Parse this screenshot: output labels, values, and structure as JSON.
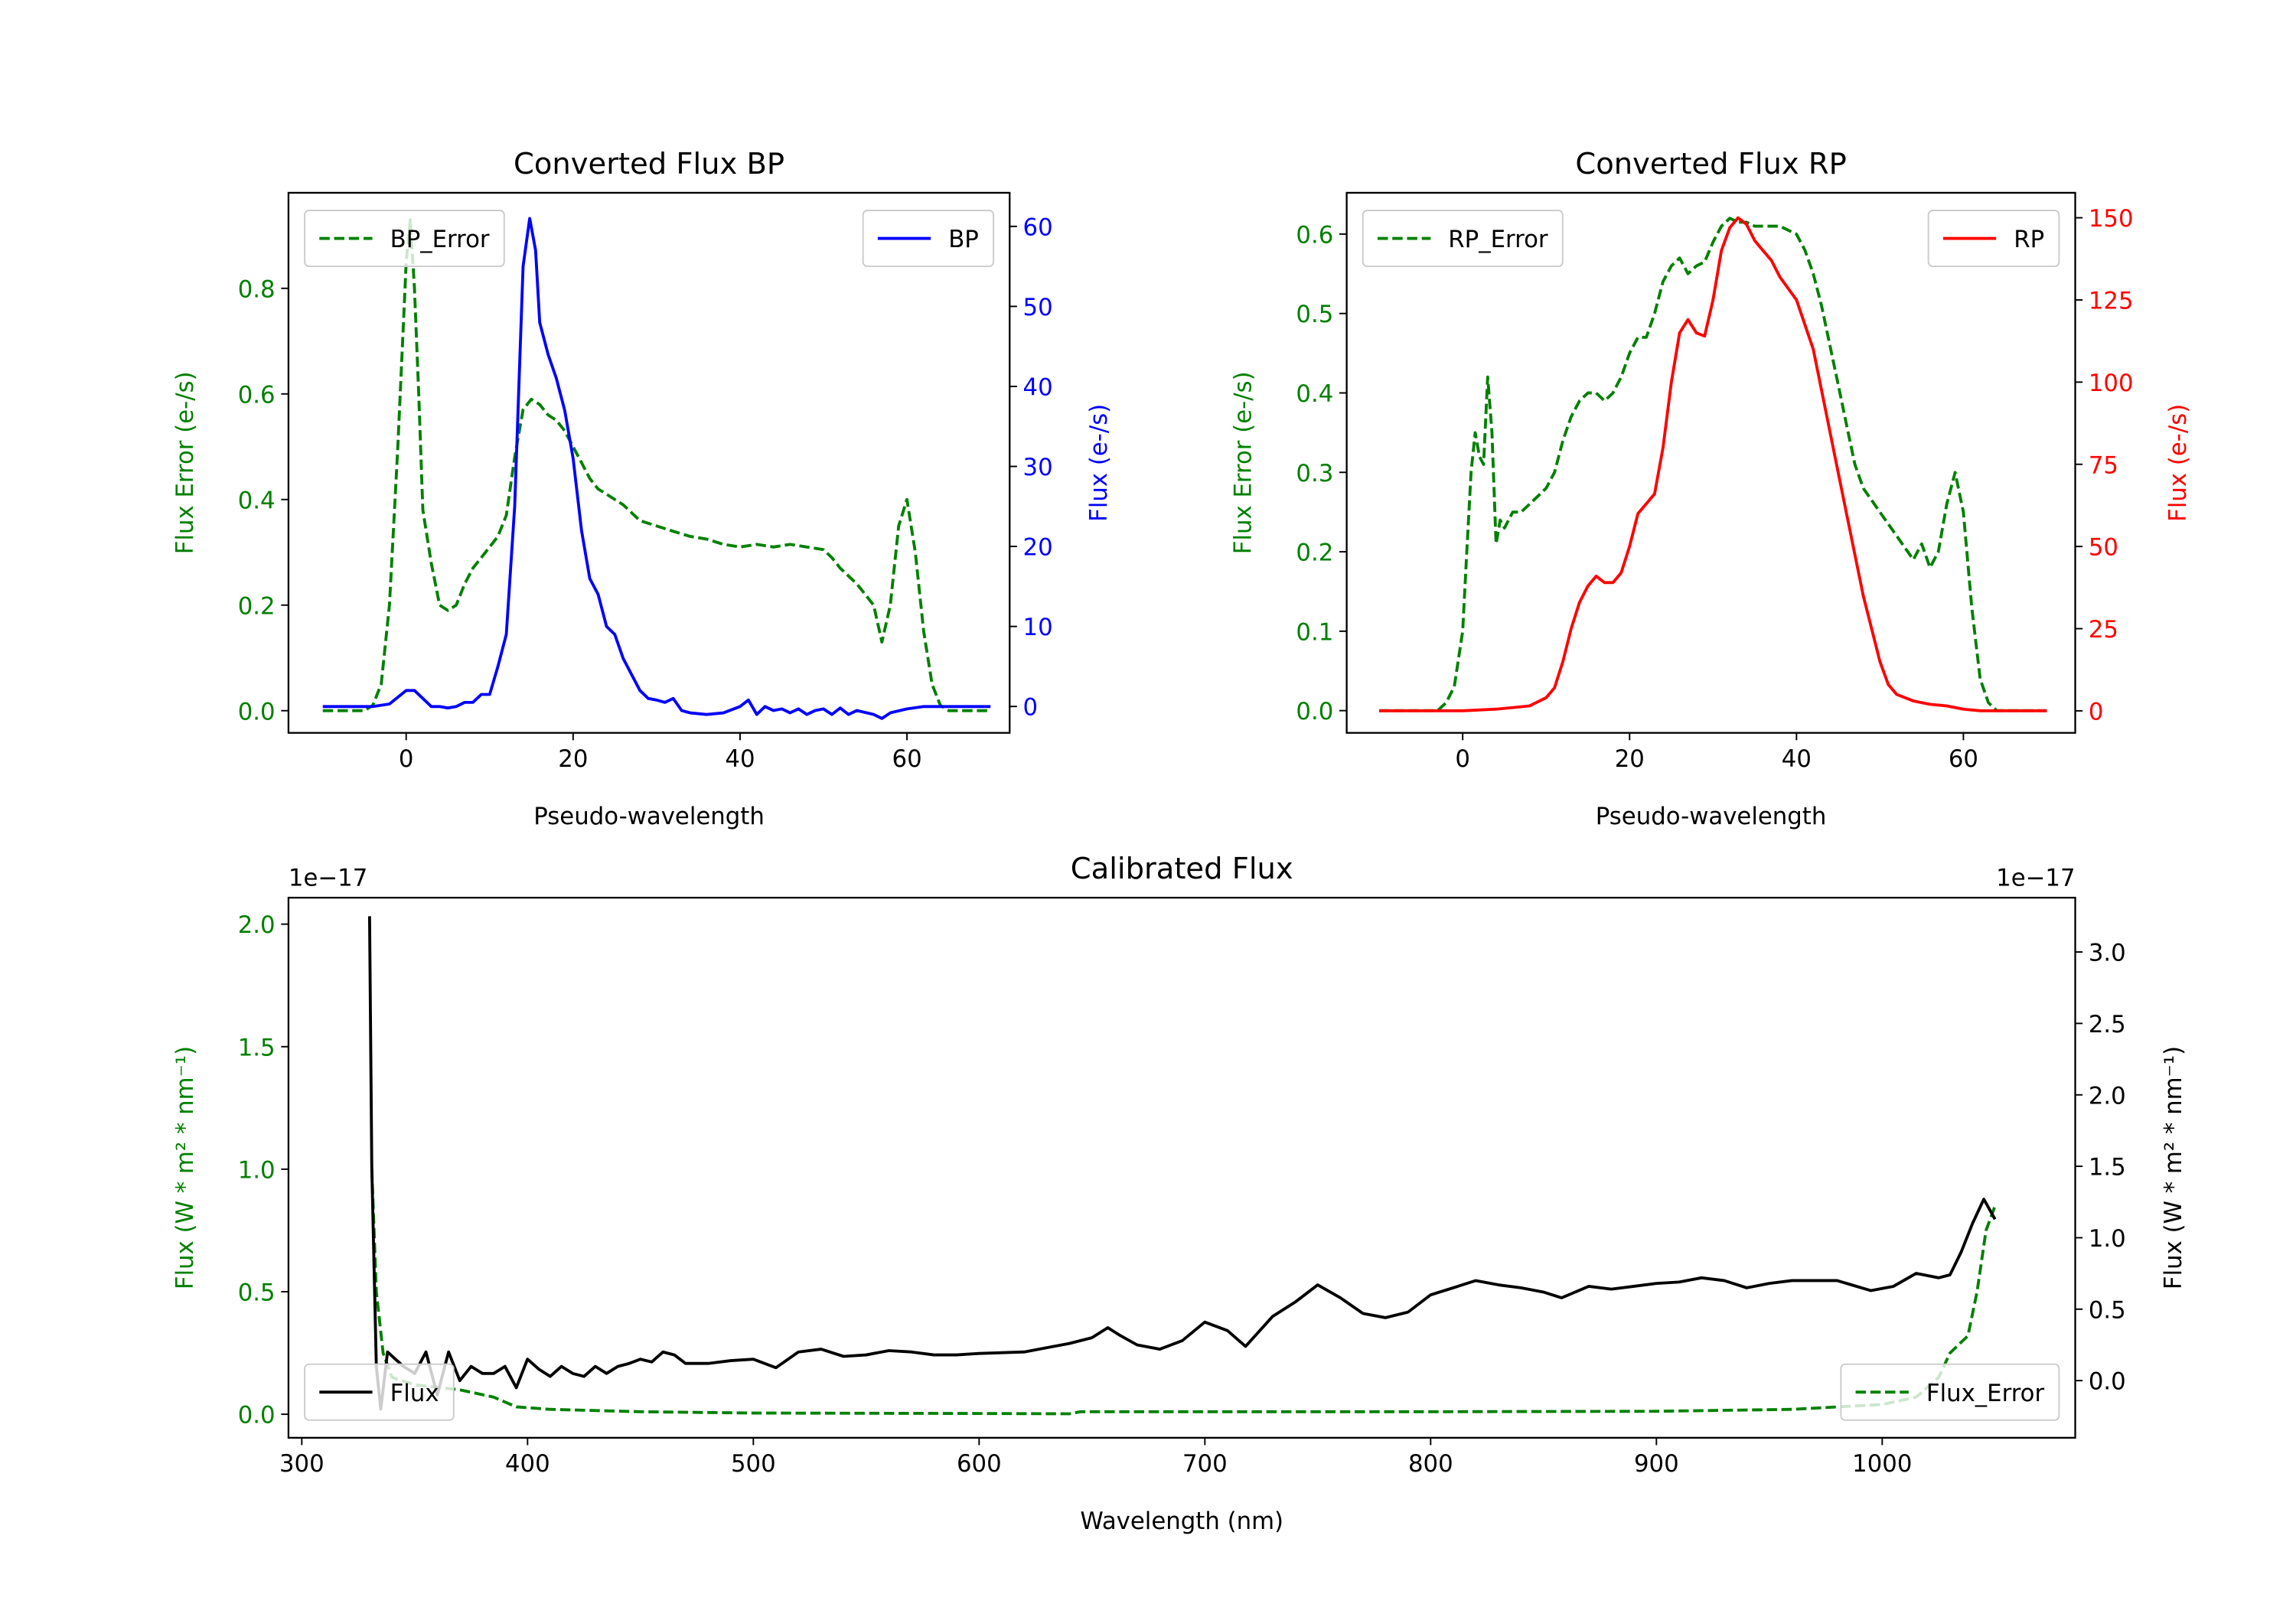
{
  "chart_data": [
    {
      "type": "line",
      "title": "Converted Flux BP",
      "xlabel": "Pseudo-wavelength",
      "ylabel_left": "Flux Error (e-/s)",
      "ylabel_right": "Flux (e-/s)",
      "xlim": [
        -14.1,
        72.3
      ],
      "ylim_left": [
        -0.042,
        0.981
      ],
      "ylim_right": [
        -3.3,
        64.2
      ],
      "xticks": [
        0,
        20,
        40,
        60
      ],
      "xtick_labels": [
        "0",
        "20",
        "40",
        "60"
      ],
      "yticks_left": [
        0.0,
        0.2,
        0.4,
        0.6,
        0.8
      ],
      "ytick_labels_left": [
        "0.0",
        "0.2",
        "0.4",
        "0.6",
        "0.8"
      ],
      "yticks_right": [
        0,
        10,
        20,
        30,
        40,
        50,
        60
      ],
      "ytick_labels_right": [
        "0",
        "10",
        "20",
        "30",
        "40",
        "50",
        "60"
      ],
      "left_color": "#008000",
      "right_color": "#0000ff",
      "series": [
        {
          "name": "BP_Error",
          "axis": "left",
          "color": "#008000",
          "dash": true,
          "legend": "top-left",
          "x": [
            -10,
            -5,
            -4,
            -3,
            -2,
            -1,
            0,
            0.5,
            1,
            1.5,
            2,
            3,
            4,
            5,
            6,
            7,
            8,
            9,
            10,
            11,
            12,
            13,
            14,
            15,
            16,
            17,
            18,
            19,
            20,
            21,
            22,
            23,
            24,
            25,
            26,
            27,
            28,
            30,
            32,
            34,
            36,
            38,
            40,
            42,
            44,
            46,
            48,
            50,
            51,
            52,
            54,
            56,
            57,
            58,
            59,
            60,
            61,
            62,
            63,
            64,
            65,
            70
          ],
          "y": [
            0,
            0,
            0.01,
            0.05,
            0.2,
            0.5,
            0.85,
            0.93,
            0.8,
            0.6,
            0.38,
            0.28,
            0.2,
            0.19,
            0.2,
            0.24,
            0.27,
            0.29,
            0.31,
            0.33,
            0.37,
            0.48,
            0.57,
            0.59,
            0.58,
            0.56,
            0.55,
            0.53,
            0.5,
            0.47,
            0.44,
            0.42,
            0.41,
            0.4,
            0.39,
            0.375,
            0.36,
            0.35,
            0.34,
            0.33,
            0.325,
            0.315,
            0.31,
            0.315,
            0.31,
            0.315,
            0.31,
            0.305,
            0.29,
            0.27,
            0.24,
            0.2,
            0.13,
            0.2,
            0.35,
            0.4,
            0.3,
            0.15,
            0.05,
            0.01,
            0,
            0
          ]
        },
        {
          "name": "BP",
          "axis": "right",
          "color": "#0000ff",
          "dash": false,
          "legend": "top-right",
          "x": [
            -10,
            -4,
            -2,
            0,
            1,
            2,
            3,
            4,
            5,
            6,
            7,
            8,
            9,
            10,
            11,
            12,
            13,
            14,
            14.8,
            15.5,
            16,
            17,
            18,
            19,
            20,
            21,
            22,
            23,
            24,
            25,
            26,
            27,
            28,
            29,
            30,
            31,
            32,
            33,
            34,
            36,
            38,
            40,
            41,
            42,
            43,
            44,
            45,
            46,
            47,
            48,
            49,
            50,
            51,
            52,
            53,
            54,
            56,
            57,
            58,
            60,
            62,
            70
          ],
          "y": [
            0,
            0,
            0.3,
            2,
            2,
            1,
            0,
            0,
            -0.2,
            0,
            0.5,
            0.5,
            1.5,
            1.5,
            5,
            9,
            25,
            55,
            61,
            57,
            48,
            44,
            41,
            37,
            31,
            22,
            16,
            14,
            10,
            9,
            6,
            4,
            2,
            1,
            0.8,
            0.5,
            1,
            -0.5,
            -0.8,
            -1,
            -0.8,
            0,
            0.8,
            -1,
            0,
            -0.5,
            -0.3,
            -0.8,
            -0.3,
            -1,
            -0.5,
            -0.3,
            -1,
            -0.2,
            -1,
            -0.5,
            -1,
            -1.5,
            -0.8,
            -0.3,
            0,
            0
          ]
        }
      ]
    },
    {
      "type": "line",
      "title": "Converted Flux RP",
      "xlabel": "Pseudo-wavelength",
      "ylabel_left": "Flux Error (e-/s)",
      "ylabel_right": "Flux (e-/s)",
      "xlim": [
        -13.9,
        73.4
      ],
      "ylim_left": [
        -0.028,
        0.652
      ],
      "ylim_right": [
        -6.7,
        157.6
      ],
      "xticks": [
        0,
        20,
        40,
        60
      ],
      "xtick_labels": [
        "0",
        "20",
        "40",
        "60"
      ],
      "yticks_left": [
        0.0,
        0.1,
        0.2,
        0.3,
        0.4,
        0.5,
        0.6
      ],
      "ytick_labels_left": [
        "0.0",
        "0.1",
        "0.2",
        "0.3",
        "0.4",
        "0.5",
        "0.6"
      ],
      "yticks_right": [
        0,
        25,
        50,
        75,
        100,
        125,
        150
      ],
      "ytick_labels_right": [
        "0",
        "25",
        "50",
        "75",
        "100",
        "125",
        "150"
      ],
      "left_color": "#008000",
      "right_color": "#ff0000",
      "series": [
        {
          "name": "RP_Error",
          "axis": "left",
          "color": "#008000",
          "dash": true,
          "legend": "top-left",
          "x": [
            -10,
            -3,
            -2,
            -1,
            0,
            0.5,
            1,
            1.5,
            2,
            2.5,
            3,
            3.5,
            4,
            4.5,
            5,
            6,
            7,
            8,
            10,
            11,
            12,
            13,
            14,
            15,
            16,
            17,
            18,
            19,
            20,
            21,
            22,
            23,
            24,
            25,
            26,
            27,
            28,
            29,
            30,
            31,
            32,
            33,
            34,
            35,
            36,
            38,
            40,
            41,
            42,
            43,
            44,
            45,
            46,
            47,
            48,
            50,
            52,
            54,
            55,
            56,
            57,
            58,
            59,
            60,
            61,
            62,
            63,
            64,
            70
          ],
          "y": [
            0,
            0,
            0.01,
            0.03,
            0.1,
            0.2,
            0.3,
            0.35,
            0.32,
            0.31,
            0.42,
            0.35,
            0.21,
            0.24,
            0.23,
            0.25,
            0.25,
            0.26,
            0.28,
            0.3,
            0.34,
            0.37,
            0.39,
            0.4,
            0.4,
            0.39,
            0.4,
            0.42,
            0.45,
            0.47,
            0.47,
            0.5,
            0.54,
            0.56,
            0.57,
            0.55,
            0.56,
            0.565,
            0.59,
            0.61,
            0.62,
            0.615,
            0.615,
            0.61,
            0.61,
            0.61,
            0.6,
            0.58,
            0.55,
            0.51,
            0.46,
            0.41,
            0.36,
            0.31,
            0.28,
            0.25,
            0.22,
            0.19,
            0.21,
            0.18,
            0.2,
            0.26,
            0.3,
            0.25,
            0.13,
            0.04,
            0.01,
            0,
            0
          ]
        },
        {
          "name": "RP",
          "axis": "right",
          "color": "#ff0000",
          "dash": false,
          "legend": "top-right",
          "x": [
            -10,
            0,
            4,
            8,
            10,
            11,
            12,
            13,
            14,
            15,
            16,
            17,
            18,
            19,
            20,
            21,
            22,
            23,
            24,
            25,
            26,
            27,
            28,
            29,
            30,
            31,
            32,
            33,
            34,
            35,
            36,
            37,
            38,
            40,
            42,
            44,
            46,
            48,
            50,
            51,
            52,
            54,
            56,
            58,
            60,
            62,
            70
          ],
          "y": [
            0,
            0,
            0.5,
            1.5,
            4,
            7,
            15,
            25,
            33,
            38,
            41,
            39,
            39,
            42,
            50,
            60,
            63,
            66,
            80,
            100,
            115,
            119,
            115,
            114,
            125,
            140,
            147,
            150,
            148,
            143,
            140,
            137,
            132,
            125,
            110,
            85,
            60,
            35,
            15,
            8,
            5,
            3,
            2,
            1.5,
            0.5,
            0,
            0
          ]
        }
      ]
    },
    {
      "type": "line",
      "title": "Calibrated Flux",
      "xlabel": "Wavelength (nm)",
      "ylabel_left": "Flux (W * m² * nm⁻¹)",
      "ylabel_right": "Flux (W * m² * nm⁻¹)",
      "offset_left": "1e−17",
      "offset_right": "1e−17",
      "xlim": [
        294.1,
        1085.5
      ],
      "ylim_left": [
        -0.096,
        2.108
      ],
      "ylim_right": [
        -0.4,
        3.38
      ],
      "xticks": [
        300,
        400,
        500,
        600,
        700,
        800,
        900,
        1000
      ],
      "xtick_labels": [
        "300",
        "400",
        "500",
        "600",
        "700",
        "800",
        "900",
        "1000"
      ],
      "yticks_left": [
        0.0,
        0.5,
        1.0,
        1.5,
        2.0
      ],
      "ytick_labels_left": [
        "0.0",
        "0.5",
        "1.0",
        "1.5",
        "2.0"
      ],
      "yticks_right": [
        0.0,
        0.5,
        1.0,
        1.5,
        2.0,
        2.5,
        3.0
      ],
      "ytick_labels_right": [
        "0.0",
        "0.5",
        "1.0",
        "1.5",
        "2.0",
        "2.5",
        "3.0"
      ],
      "left_color": "#008000",
      "right_color": "#000000",
      "series": [
        {
          "name": "Flux_Error",
          "axis": "left",
          "color": "#008000",
          "dash": true,
          "legend": "bottom-right",
          "x": [
            331,
            333,
            336,
            340,
            350,
            370,
            385,
            395,
            410,
            450,
            500,
            600,
            640,
            645,
            700,
            800,
            900,
            960,
            1000,
            1015,
            1025,
            1030,
            1038,
            1042,
            1046,
            1050
          ],
          "y": [
            1.0,
            0.5,
            0.25,
            0.15,
            0.12,
            0.1,
            0.07,
            0.03,
            0.02,
            0.01,
            0.005,
            0.003,
            0.002,
            0.01,
            0.01,
            0.01,
            0.012,
            0.02,
            0.04,
            0.07,
            0.15,
            0.25,
            0.32,
            0.5,
            0.75,
            0.85
          ]
        },
        {
          "name": "Flux",
          "axis": "right",
          "color": "#000000",
          "dash": false,
          "legend": "bottom-left",
          "x": [
            330,
            331,
            333,
            335,
            338,
            345,
            350,
            355,
            360,
            365,
            370,
            375,
            380,
            385,
            390,
            395,
            400,
            405,
            410,
            415,
            420,
            425,
            430,
            435,
            440,
            445,
            450,
            455,
            460,
            465,
            470,
            480,
            490,
            500,
            510,
            520,
            530,
            540,
            550,
            560,
            570,
            580,
            590,
            600,
            620,
            630,
            640,
            650,
            657,
            662,
            670,
            680,
            690,
            700,
            710,
            718,
            730,
            740,
            750,
            760,
            770,
            780,
            790,
            800,
            810,
            820,
            830,
            840,
            850,
            858,
            870,
            880,
            890,
            900,
            910,
            920,
            930,
            940,
            950,
            960,
            970,
            980,
            995,
            1005,
            1015,
            1025,
            1030,
            1035,
            1040,
            1045,
            1050
          ],
          "y": [
            3.25,
            1.5,
            0.1,
            -0.2,
            0.2,
            0.1,
            0.05,
            0.2,
            -0.1,
            0.2,
            0.0,
            0.1,
            0.05,
            0.05,
            0.1,
            -0.05,
            0.15,
            0.08,
            0.03,
            0.1,
            0.05,
            0.03,
            0.1,
            0.05,
            0.1,
            0.12,
            0.15,
            0.13,
            0.2,
            0.18,
            0.12,
            0.12,
            0.14,
            0.15,
            0.09,
            0.2,
            0.22,
            0.17,
            0.18,
            0.21,
            0.2,
            0.18,
            0.18,
            0.19,
            0.2,
            0.23,
            0.26,
            0.3,
            0.37,
            0.32,
            0.25,
            0.22,
            0.28,
            0.41,
            0.35,
            0.24,
            0.45,
            0.55,
            0.67,
            0.58,
            0.47,
            0.44,
            0.48,
            0.6,
            0.65,
            0.7,
            0.67,
            0.65,
            0.62,
            0.58,
            0.66,
            0.64,
            0.66,
            0.68,
            0.69,
            0.72,
            0.7,
            0.65,
            0.68,
            0.7,
            0.7,
            0.7,
            0.63,
            0.66,
            0.75,
            0.72,
            0.74,
            0.9,
            1.1,
            1.27,
            1.13
          ]
        }
      ]
    }
  ]
}
